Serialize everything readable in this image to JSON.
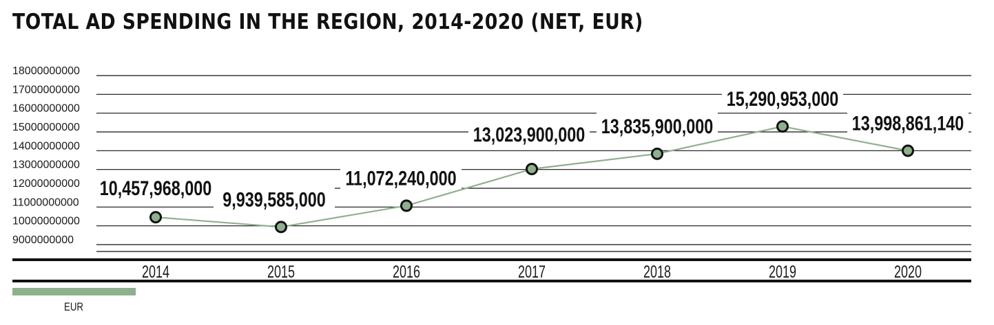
{
  "chart_data": {
    "type": "line",
    "title": "TOTAL AD SPENDING IN THE REGION, 2014-2020 (NET, EUR)",
    "xlabel": "",
    "ylabel": "",
    "ylim": [
      8500000000,
      18000000000
    ],
    "y_ticks": [
      18000000000,
      17000000000,
      16000000000,
      15000000000,
      14000000000,
      13000000000,
      12000000000,
      11000000000,
      10000000000,
      9000000000
    ],
    "y_tick_labels": [
      "18000000000",
      "17000000000",
      "16000000000",
      "15000000000",
      "14000000000",
      "13000000000",
      "12000000000",
      "11000000000",
      "10000000000",
      "9000000000"
    ],
    "categories": [
      "2014",
      "2015",
      "2016",
      "2017",
      "2018",
      "2019",
      "2020"
    ],
    "series": [
      {
        "name": "EUR",
        "values": [
          10457968000,
          9939585000,
          11072240000,
          13023900000,
          13835900000,
          15290953000,
          13998861140
        ],
        "labels": [
          "10,457,968,000",
          "9,939,585,000",
          "11,072,240,000",
          "13,023,900,000",
          "13,835,900,000",
          "15,290,953,000",
          "13,998,861,140"
        ]
      }
    ],
    "grid": true,
    "legend": "bottom-left",
    "colors": {
      "line": "#8fb08c",
      "marker_fill": "#8fb08c",
      "marker_stroke": "#111111",
      "grid": "#111111",
      "legend": "#8fb08c"
    }
  }
}
